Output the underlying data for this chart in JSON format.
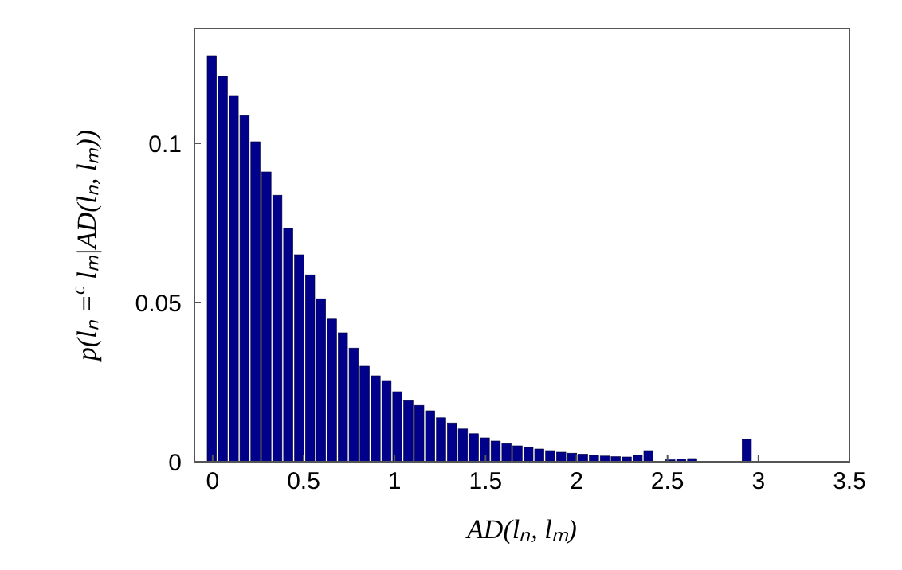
{
  "chart_data": {
    "type": "histogram",
    "xlabel": "AD(lₙ, lₘ)",
    "ylabel": "p(lₙ =$^{c}$ lₘ|AD(lₙ, lₘ))",
    "color": "#00008b",
    "bins": [
      -0.03,
      0.03,
      0.09,
      0.15,
      0.21,
      0.27,
      0.33,
      0.39,
      0.45,
      0.51,
      0.57,
      0.63,
      0.69,
      0.75,
      0.81,
      0.87,
      0.93,
      0.99,
      1.05,
      1.11,
      1.17,
      1.23,
      1.29,
      1.35,
      1.41,
      1.47,
      1.53,
      1.59,
      1.65,
      1.71,
      1.77,
      1.83,
      1.89,
      1.95,
      2.01,
      2.07,
      2.13,
      2.19,
      2.25,
      2.31,
      2.37,
      2.43,
      2.49,
      2.55,
      2.61,
      2.67,
      2.73,
      2.79,
      2.85,
      2.91,
      2.97
    ],
    "values": [
      0.1275,
      0.121,
      0.115,
      0.1087,
      0.1005,
      0.091,
      0.0837,
      0.0733,
      0.065,
      0.0587,
      0.0512,
      0.0448,
      0.0405,
      0.0357,
      0.03,
      0.027,
      0.0255,
      0.022,
      0.0192,
      0.0177,
      0.016,
      0.0138,
      0.0122,
      0.0103,
      0.0088,
      0.0075,
      0.0065,
      0.0057,
      0.005,
      0.0045,
      0.004,
      0.0035,
      0.003,
      0.0027,
      0.0024,
      0.002,
      0.0018,
      0.0016,
      0.0015,
      0.002,
      0.0035,
      0,
      0.0006,
      0.0008,
      0.001,
      0,
      0,
      0,
      0,
      0.007
    ],
    "xlim": [
      -0.1,
      3.5
    ],
    "xticks": [
      0,
      0.5,
      1,
      1.5,
      2,
      2.5,
      3,
      3.5
    ],
    "ylim": [
      0,
      0.136
    ],
    "yticks": [
      0,
      0.05,
      0.1
    ],
    "grid": false
  }
}
